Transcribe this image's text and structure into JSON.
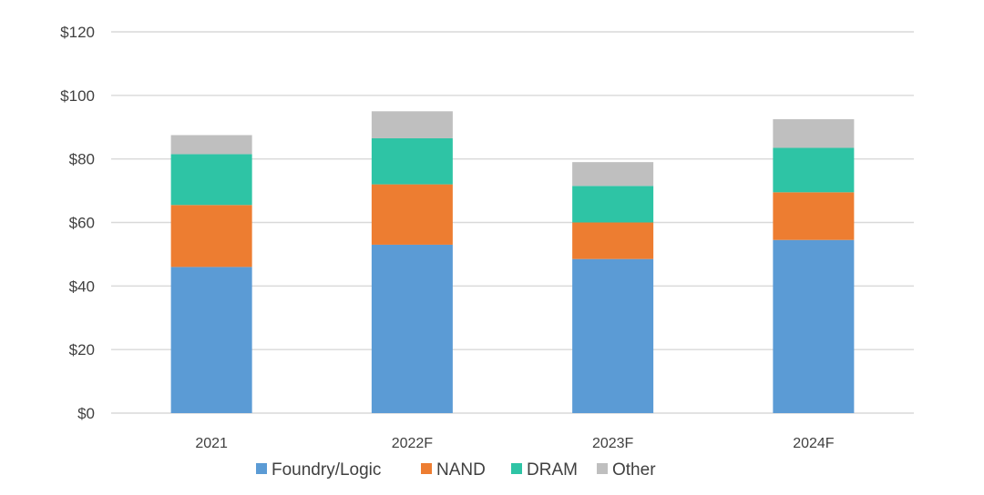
{
  "chart_data": {
    "type": "bar",
    "stacked": true,
    "title": "",
    "xlabel": "",
    "ylabel": "",
    "categories": [
      "2021",
      "2022F",
      "2023F",
      "2024F"
    ],
    "series": [
      {
        "name": "Foundry/Logic",
        "values": [
          46,
          53,
          48.5,
          54.5
        ],
        "color": "#5b9bd5"
      },
      {
        "name": "NAND",
        "values": [
          19.5,
          19,
          11.5,
          15
        ],
        "color": "#ed7d31"
      },
      {
        "name": "DRAM",
        "values": [
          16,
          14.5,
          11.5,
          14
        ],
        "color": "#2ec4a5"
      },
      {
        "name": "Other",
        "values": [
          6,
          8.5,
          7.5,
          9
        ],
        "color": "#bfbfbf"
      }
    ],
    "ylim": [
      0,
      120
    ],
    "yticks": [
      0,
      20,
      40,
      60,
      80,
      100,
      120
    ],
    "ytick_labels": [
      "$0",
      "$20",
      "$40",
      "$60",
      "$80",
      "$100",
      "$120"
    ],
    "grid": true,
    "gridline_color": "#d9d9d9",
    "legend_position": "bottom"
  }
}
